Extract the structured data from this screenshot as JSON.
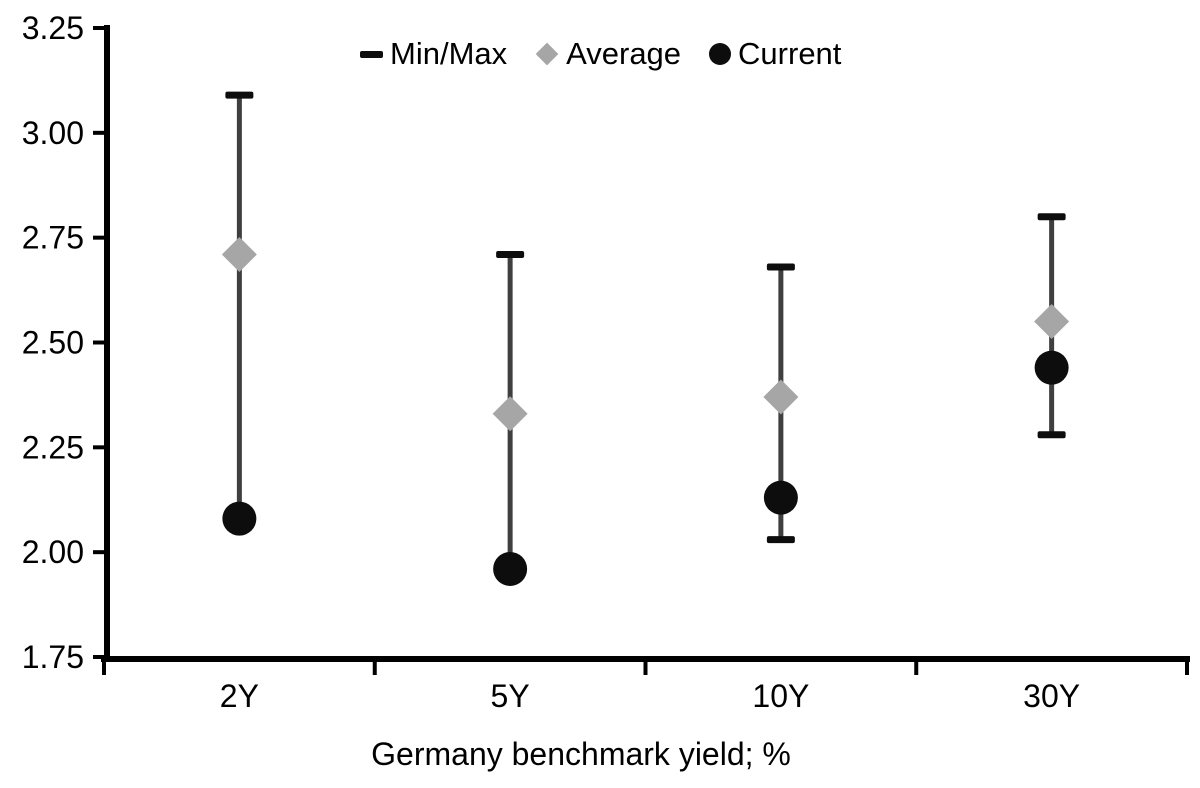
{
  "chart_data": {
    "type": "scatter",
    "title": "",
    "xlabel": "Germany benchmark yield; %",
    "ylabel": "",
    "categories": [
      "2Y",
      "5Y",
      "10Y",
      "30Y"
    ],
    "ylim": [
      1.75,
      3.25
    ],
    "ytick_step": 0.25,
    "ytick_labels": [
      "1.75",
      "2.00",
      "2.25",
      "2.50",
      "2.75",
      "3.00",
      "3.25"
    ],
    "grid": "off",
    "legend": {
      "position": "top-center",
      "items": [
        {
          "label": "Min/Max",
          "marker": "dash-icon"
        },
        {
          "label": "Average",
          "marker": "diamond-icon"
        },
        {
          "label": "Current",
          "marker": "circle-icon"
        }
      ]
    },
    "series": [
      {
        "name": "Min/Max",
        "type": "range",
        "min": [
          2.08,
          1.96,
          2.03,
          2.28
        ],
        "max": [
          3.09,
          2.71,
          2.68,
          2.8
        ]
      },
      {
        "name": "Average",
        "type": "point-diamond",
        "values": [
          2.71,
          2.33,
          2.37,
          2.55
        ]
      },
      {
        "name": "Current",
        "type": "point-circle",
        "values": [
          2.08,
          1.96,
          2.13,
          2.44
        ]
      }
    ],
    "colors": {
      "range_line": "#3f3f3f",
      "range_cap": "#0d0d0d",
      "average": "#a6a6a6",
      "current": "#0d0d0d",
      "axis": "#000000",
      "text": "#000000",
      "background": "#ffffff"
    }
  }
}
